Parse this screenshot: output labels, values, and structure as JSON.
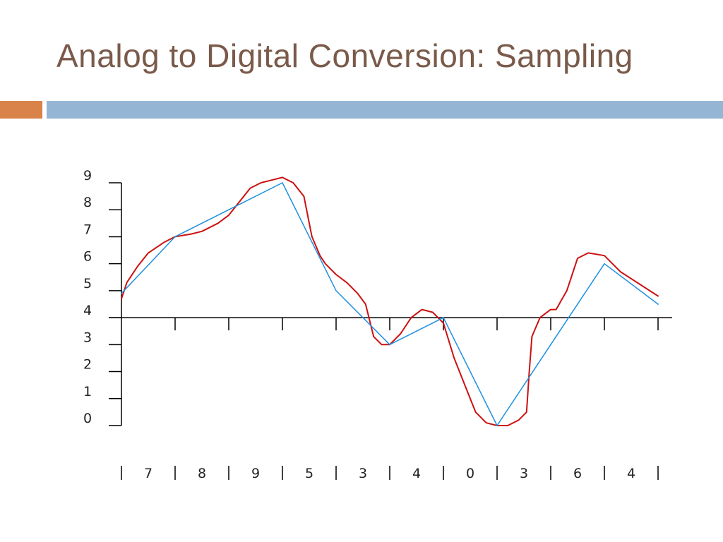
{
  "slide": {
    "title": "Analog to Digital Conversion: Sampling",
    "colors": {
      "title": "#7a5a4a",
      "accent_bar": "#d9824a",
      "main_bar": "#94b6d4"
    }
  },
  "chart_data": {
    "type": "line",
    "title": "",
    "xlabel": "",
    "ylabel": "",
    "ylim": [
      0,
      9
    ],
    "xlim": [
      0,
      10
    ],
    "y_ticks": [
      0,
      1,
      2,
      3,
      4,
      5,
      6,
      7,
      8,
      9
    ],
    "baseline": 4,
    "grid": false,
    "legend": "none",
    "sample_codes": [
      "7",
      "8",
      "9",
      "5",
      "3",
      "4",
      "0",
      "3",
      "6",
      "4"
    ],
    "series": [
      {
        "kind": "analog-signal",
        "color": "#cc1111",
        "x": [
          0,
          0.1,
          0.3,
          0.5,
          0.8,
          1.0,
          1.3,
          1.5,
          1.8,
          2.0,
          2.2,
          2.4,
          2.6,
          2.8,
          3.0,
          3.2,
          3.4,
          3.55,
          3.7,
          3.8,
          4.0,
          4.2,
          4.4,
          4.55,
          4.7,
          4.85,
          5.0,
          5.2,
          5.4,
          5.6,
          5.8,
          6.0,
          6.2,
          6.4,
          6.6,
          6.8,
          7.0,
          7.2,
          7.4,
          7.55,
          7.6,
          7.65,
          7.8,
          8.0,
          8.1,
          8.3,
          8.5,
          8.7,
          9.0,
          9.3,
          10.0
        ],
        "y": [
          4.7,
          5.3,
          5.9,
          6.4,
          6.8,
          7.0,
          7.1,
          7.2,
          7.5,
          7.8,
          8.3,
          8.8,
          9.0,
          9.1,
          9.2,
          9.0,
          8.5,
          7.0,
          6.3,
          6.0,
          5.6,
          5.3,
          4.9,
          4.5,
          3.3,
          3.0,
          3.0,
          3.4,
          4.0,
          4.3,
          4.2,
          3.8,
          2.5,
          1.5,
          0.5,
          0.1,
          0.0,
          0.0,
          0.2,
          0.5,
          2.0,
          3.3,
          4.0,
          4.3,
          4.3,
          5.0,
          6.2,
          6.4,
          6.3,
          5.7,
          4.8
        ]
      },
      {
        "kind": "sampled-signal",
        "color": "#1f8fe0",
        "x": [
          0,
          1,
          2,
          3,
          4,
          5,
          6,
          7,
          8,
          9,
          10
        ],
        "y": [
          4.9,
          7,
          8,
          9,
          5,
          3,
          4,
          0,
          3,
          6,
          4.5
        ]
      }
    ]
  }
}
